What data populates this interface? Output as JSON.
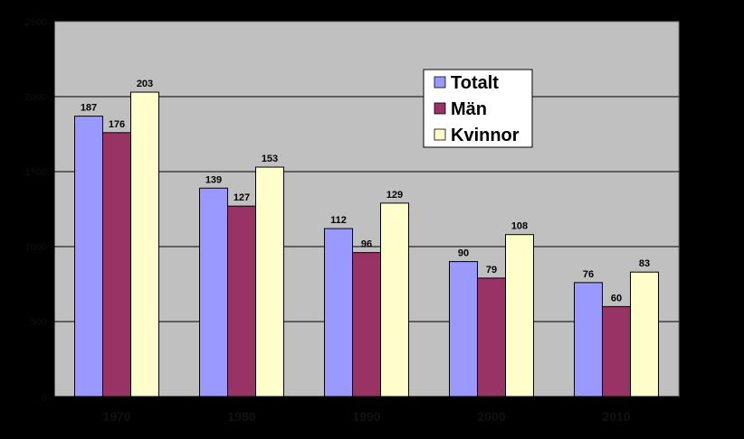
{
  "chart_data": {
    "type": "bar",
    "categories": [
      "1970",
      "1980",
      "1990",
      "2000",
      "2010"
    ],
    "series": [
      {
        "name": "Totalt",
        "values": [
          187,
          139,
          112,
          90,
          76
        ],
        "color": "#9999ff"
      },
      {
        "name": "Män",
        "values": [
          176,
          127,
          96,
          79,
          60
        ],
        "color": "#993366"
      },
      {
        "name": "Kvinnor",
        "values": [
          203,
          153,
          129,
          108,
          83
        ],
        "color": "#ffffcc"
      }
    ],
    "yticks": [
      "0",
      "500",
      "1000",
      "1500",
      "2000",
      "2500"
    ],
    "ylim": [
      0,
      250
    ],
    "grid": true,
    "legend_position": "top-right",
    "plot_background": "#c0c0c0",
    "page_background": "#000000"
  }
}
